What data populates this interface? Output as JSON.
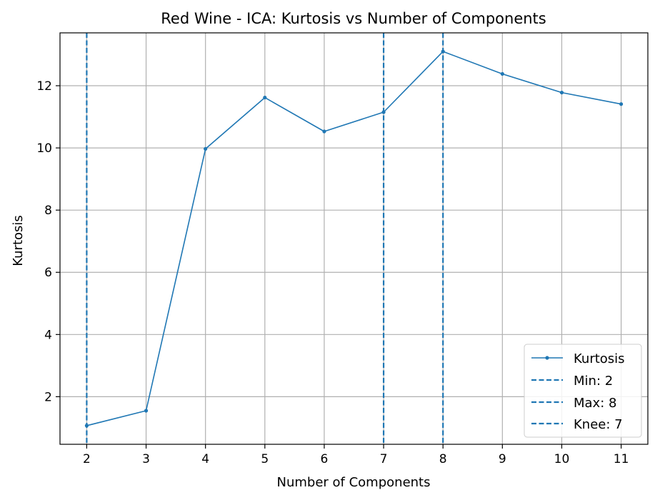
{
  "chart_data": {
    "type": "line",
    "title": "Red Wine - ICA: Kurtosis vs Number of Components",
    "xlabel": "Number of Components",
    "ylabel": "Kurtosis",
    "x": [
      2,
      3,
      4,
      5,
      6,
      7,
      8,
      9,
      10,
      11
    ],
    "series": [
      {
        "name": "Kurtosis",
        "values": [
          1.07,
          1.55,
          9.97,
          11.62,
          10.53,
          11.15,
          13.1,
          12.38,
          11.78,
          11.41
        ],
        "color": "#1f77b4"
      }
    ],
    "vlines": [
      {
        "name": "Min: 2",
        "x": 2,
        "color": "#1f77b4"
      },
      {
        "name": "Max: 8",
        "x": 8,
        "color": "#1f77b4"
      },
      {
        "name": "Knee: 7",
        "x": 7,
        "color": "#1f77b4"
      }
    ],
    "xticks": [
      2,
      3,
      4,
      5,
      6,
      7,
      8,
      9,
      10,
      11
    ],
    "yticks": [
      2,
      4,
      6,
      8,
      10,
      12
    ],
    "xlim": [
      1.55,
      11.45
    ],
    "ylim": [
      0.47,
      13.7
    ],
    "grid": true,
    "legend_position": "lower-right"
  }
}
